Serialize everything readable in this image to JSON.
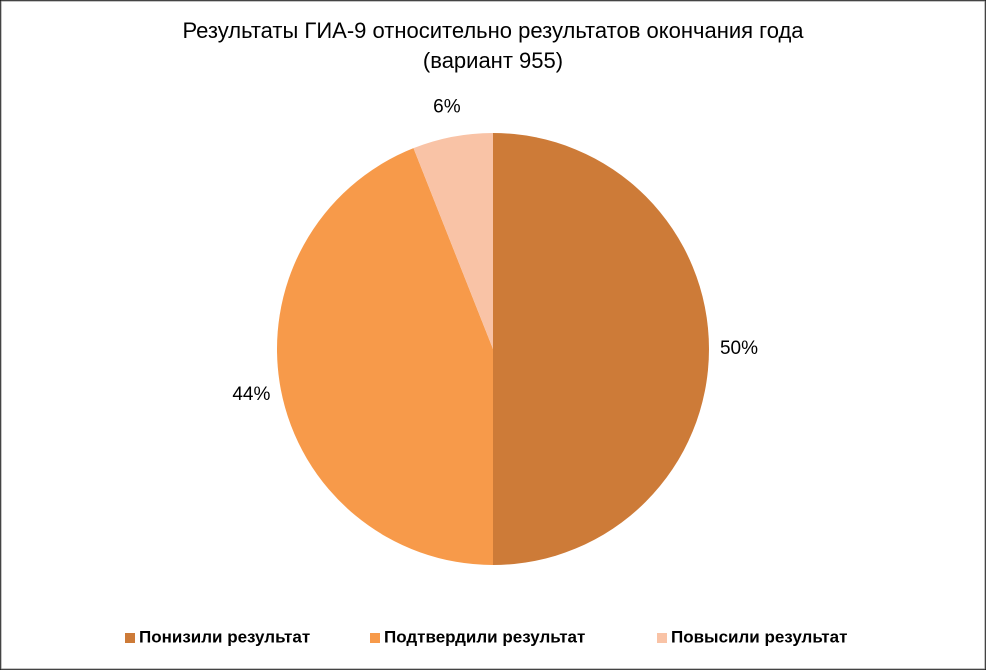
{
  "chart_data": {
    "type": "pie",
    "title": [
      "Результаты ГИА-9 относительно результатов окончания года",
      "(вариант 955)"
    ],
    "categories": [
      "Понизили результат",
      "Подтвердили результат",
      "Повысили результат"
    ],
    "values": [
      50,
      44,
      6
    ],
    "value_labels": [
      "50%",
      "44%",
      "6%"
    ],
    "colors": [
      "#cd7b38",
      "#f79a4a",
      "#f9c3a6"
    ],
    "legend": "bottom"
  }
}
